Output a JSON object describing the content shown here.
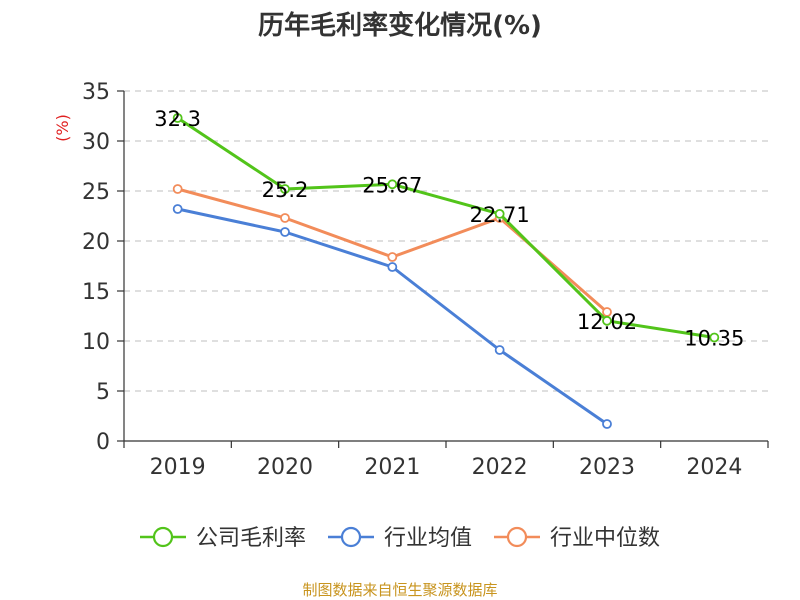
{
  "chart_data": {
    "type": "line",
    "title": "历年毛利率变化情况(%)",
    "ylabel": "(%)",
    "xlabel": "",
    "categories": [
      "2019",
      "2020",
      "2021",
      "2022",
      "2023",
      "2024"
    ],
    "ylim": [
      0,
      35
    ],
    "yticks": [
      0,
      5,
      10,
      15,
      20,
      25,
      30,
      35
    ],
    "grid": true,
    "legend_position": "bottom",
    "series": [
      {
        "name": "公司毛利率",
        "color": "#52c41a",
        "values": [
          32.3,
          25.2,
          25.67,
          22.71,
          12.02,
          10.35
        ],
        "labels": [
          "32.3",
          "25.2",
          "25.67",
          "22.71",
          "12.02",
          "10.35"
        ]
      },
      {
        "name": "行业均值",
        "color": "#4a7fd6",
        "values": [
          23.2,
          20.9,
          17.4,
          9.1,
          1.7,
          null
        ]
      },
      {
        "name": "行业中位数",
        "color": "#f28c5a",
        "values": [
          25.2,
          22.3,
          18.4,
          22.3,
          12.9,
          null
        ]
      }
    ]
  },
  "colors": {
    "axis_label": "#333333",
    "unit_label": "#e02020",
    "source": "#c8941e",
    "grid": "#cccccc"
  },
  "source": "制图数据来自恒生聚源数据库"
}
